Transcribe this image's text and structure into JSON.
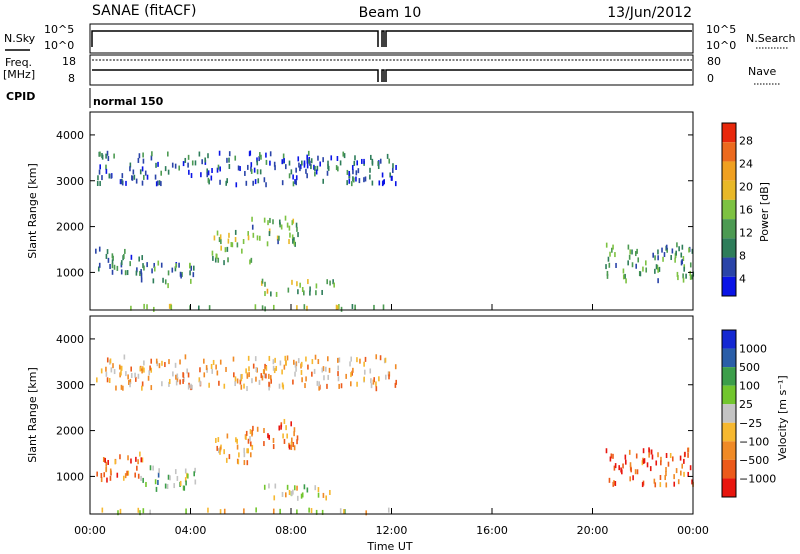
{
  "header": {
    "station": "SANAE (fitACF)",
    "beam": "Beam 10",
    "date": "13/Jun/2012"
  },
  "top_panels": {
    "nsky_label": "N.Sky",
    "nsky_ticks": [
      "10^5",
      "10^0"
    ],
    "nsearch_label": "N.Search",
    "nsearch_ticks": [
      "10^5",
      "10^0"
    ],
    "freq_label": "Freq.",
    "freq_unit": "[MHz]",
    "freq_ticks": [
      "18",
      "8"
    ],
    "nave_label": "Nave",
    "nave_ticks": [
      "80",
      "0"
    ],
    "cpid_label": "CPID",
    "cpid_value": "normal 150"
  },
  "colors": {
    "power": [
      "#0a14e6",
      "#2a44a8",
      "#2e7d5a",
      "#4c9a52",
      "#7dc242",
      "#e8b828",
      "#f0a020",
      "#ec6a1e",
      "#e8280c"
    ],
    "velocity": [
      "#e8160e",
      "#ec5a1a",
      "#f08a26",
      "#f6b830",
      "#c4c4c4",
      "#72c62e",
      "#3c9e4a",
      "#2a5ea8",
      "#1428d2"
    ]
  },
  "chart_data": [
    {
      "type": "heatmap",
      "panel": "power",
      "xlabel": "Time UT",
      "ylabel": "Slant Range [km]",
      "x_ticks": [
        "00:00",
        "04:00",
        "08:00",
        "12:00",
        "16:00",
        "20:00",
        "00:00"
      ],
      "y_ticks": [
        "1000",
        "2000",
        "3000",
        "4000"
      ],
      "xlim_hours": [
        0,
        24
      ],
      "ylim_km": [
        180,
        4500
      ],
      "colorbar": {
        "label": "Power [dB]",
        "ticks": [
          "28",
          "24",
          "20",
          "16",
          "12",
          "8",
          "4"
        ],
        "range": [
          0,
          30
        ]
      },
      "regions": [
        {
          "t": [
            0.2,
            2.2
          ],
          "r": [
            900,
            1500
          ],
          "level": 0.25
        },
        {
          "t": [
            2.0,
            4.2
          ],
          "r": [
            700,
            1200
          ],
          "level": 0.3
        },
        {
          "t": [
            4.8,
            6.4
          ],
          "r": [
            1200,
            1900
          ],
          "level": 0.45
        },
        {
          "t": [
            6.2,
            8.3
          ],
          "r": [
            1600,
            2200
          ],
          "level": 0.4
        },
        {
          "t": [
            6.8,
            9.8
          ],
          "r": [
            500,
            800
          ],
          "level": 0.5
        },
        {
          "t": [
            0.2,
            12.0
          ],
          "r": [
            180,
            260
          ],
          "level": 0.45
        },
        {
          "t": [
            0.2,
            12.2
          ],
          "r": [
            2900,
            3600
          ],
          "level": 0.2
        },
        {
          "t": [
            20.5,
            24.0
          ],
          "r": [
            800,
            1600
          ],
          "level": 0.35
        }
      ]
    },
    {
      "type": "heatmap",
      "panel": "velocity",
      "xlabel": "Time UT",
      "ylabel": "Slant Range [km]",
      "x_ticks": [
        "00:00",
        "04:00",
        "08:00",
        "12:00",
        "16:00",
        "20:00",
        "00:00"
      ],
      "y_ticks": [
        "1000",
        "2000",
        "3000",
        "4000"
      ],
      "xlim_hours": [
        0,
        24
      ],
      "ylim_km": [
        180,
        4500
      ],
      "colorbar": {
        "label": "Velocity [m s⁻¹]",
        "ticks": [
          "1000",
          "500",
          "100",
          "25",
          "−25",
          "−100",
          "−500",
          "−1000"
        ]
      },
      "regions": [
        {
          "t": [
            0.2,
            2.2
          ],
          "r": [
            900,
            1500
          ],
          "level": 0.25
        },
        {
          "t": [
            2.0,
            4.2
          ],
          "r": [
            700,
            1200
          ],
          "level": 0.6
        },
        {
          "t": [
            4.8,
            6.4
          ],
          "r": [
            1200,
            1900
          ],
          "level": 0.3
        },
        {
          "t": [
            6.2,
            8.3
          ],
          "r": [
            1600,
            2200
          ],
          "level": 0.2
        },
        {
          "t": [
            6.8,
            9.8
          ],
          "r": [
            500,
            800
          ],
          "level": 0.5
        },
        {
          "t": [
            0.2,
            12.0
          ],
          "r": [
            180,
            260
          ],
          "level": 0.5
        },
        {
          "t": [
            0.2,
            12.2
          ],
          "r": [
            2900,
            3600
          ],
          "level": 0.35
        },
        {
          "t": [
            20.5,
            24.0
          ],
          "r": [
            800,
            1600
          ],
          "level": 0.15
        }
      ]
    }
  ]
}
